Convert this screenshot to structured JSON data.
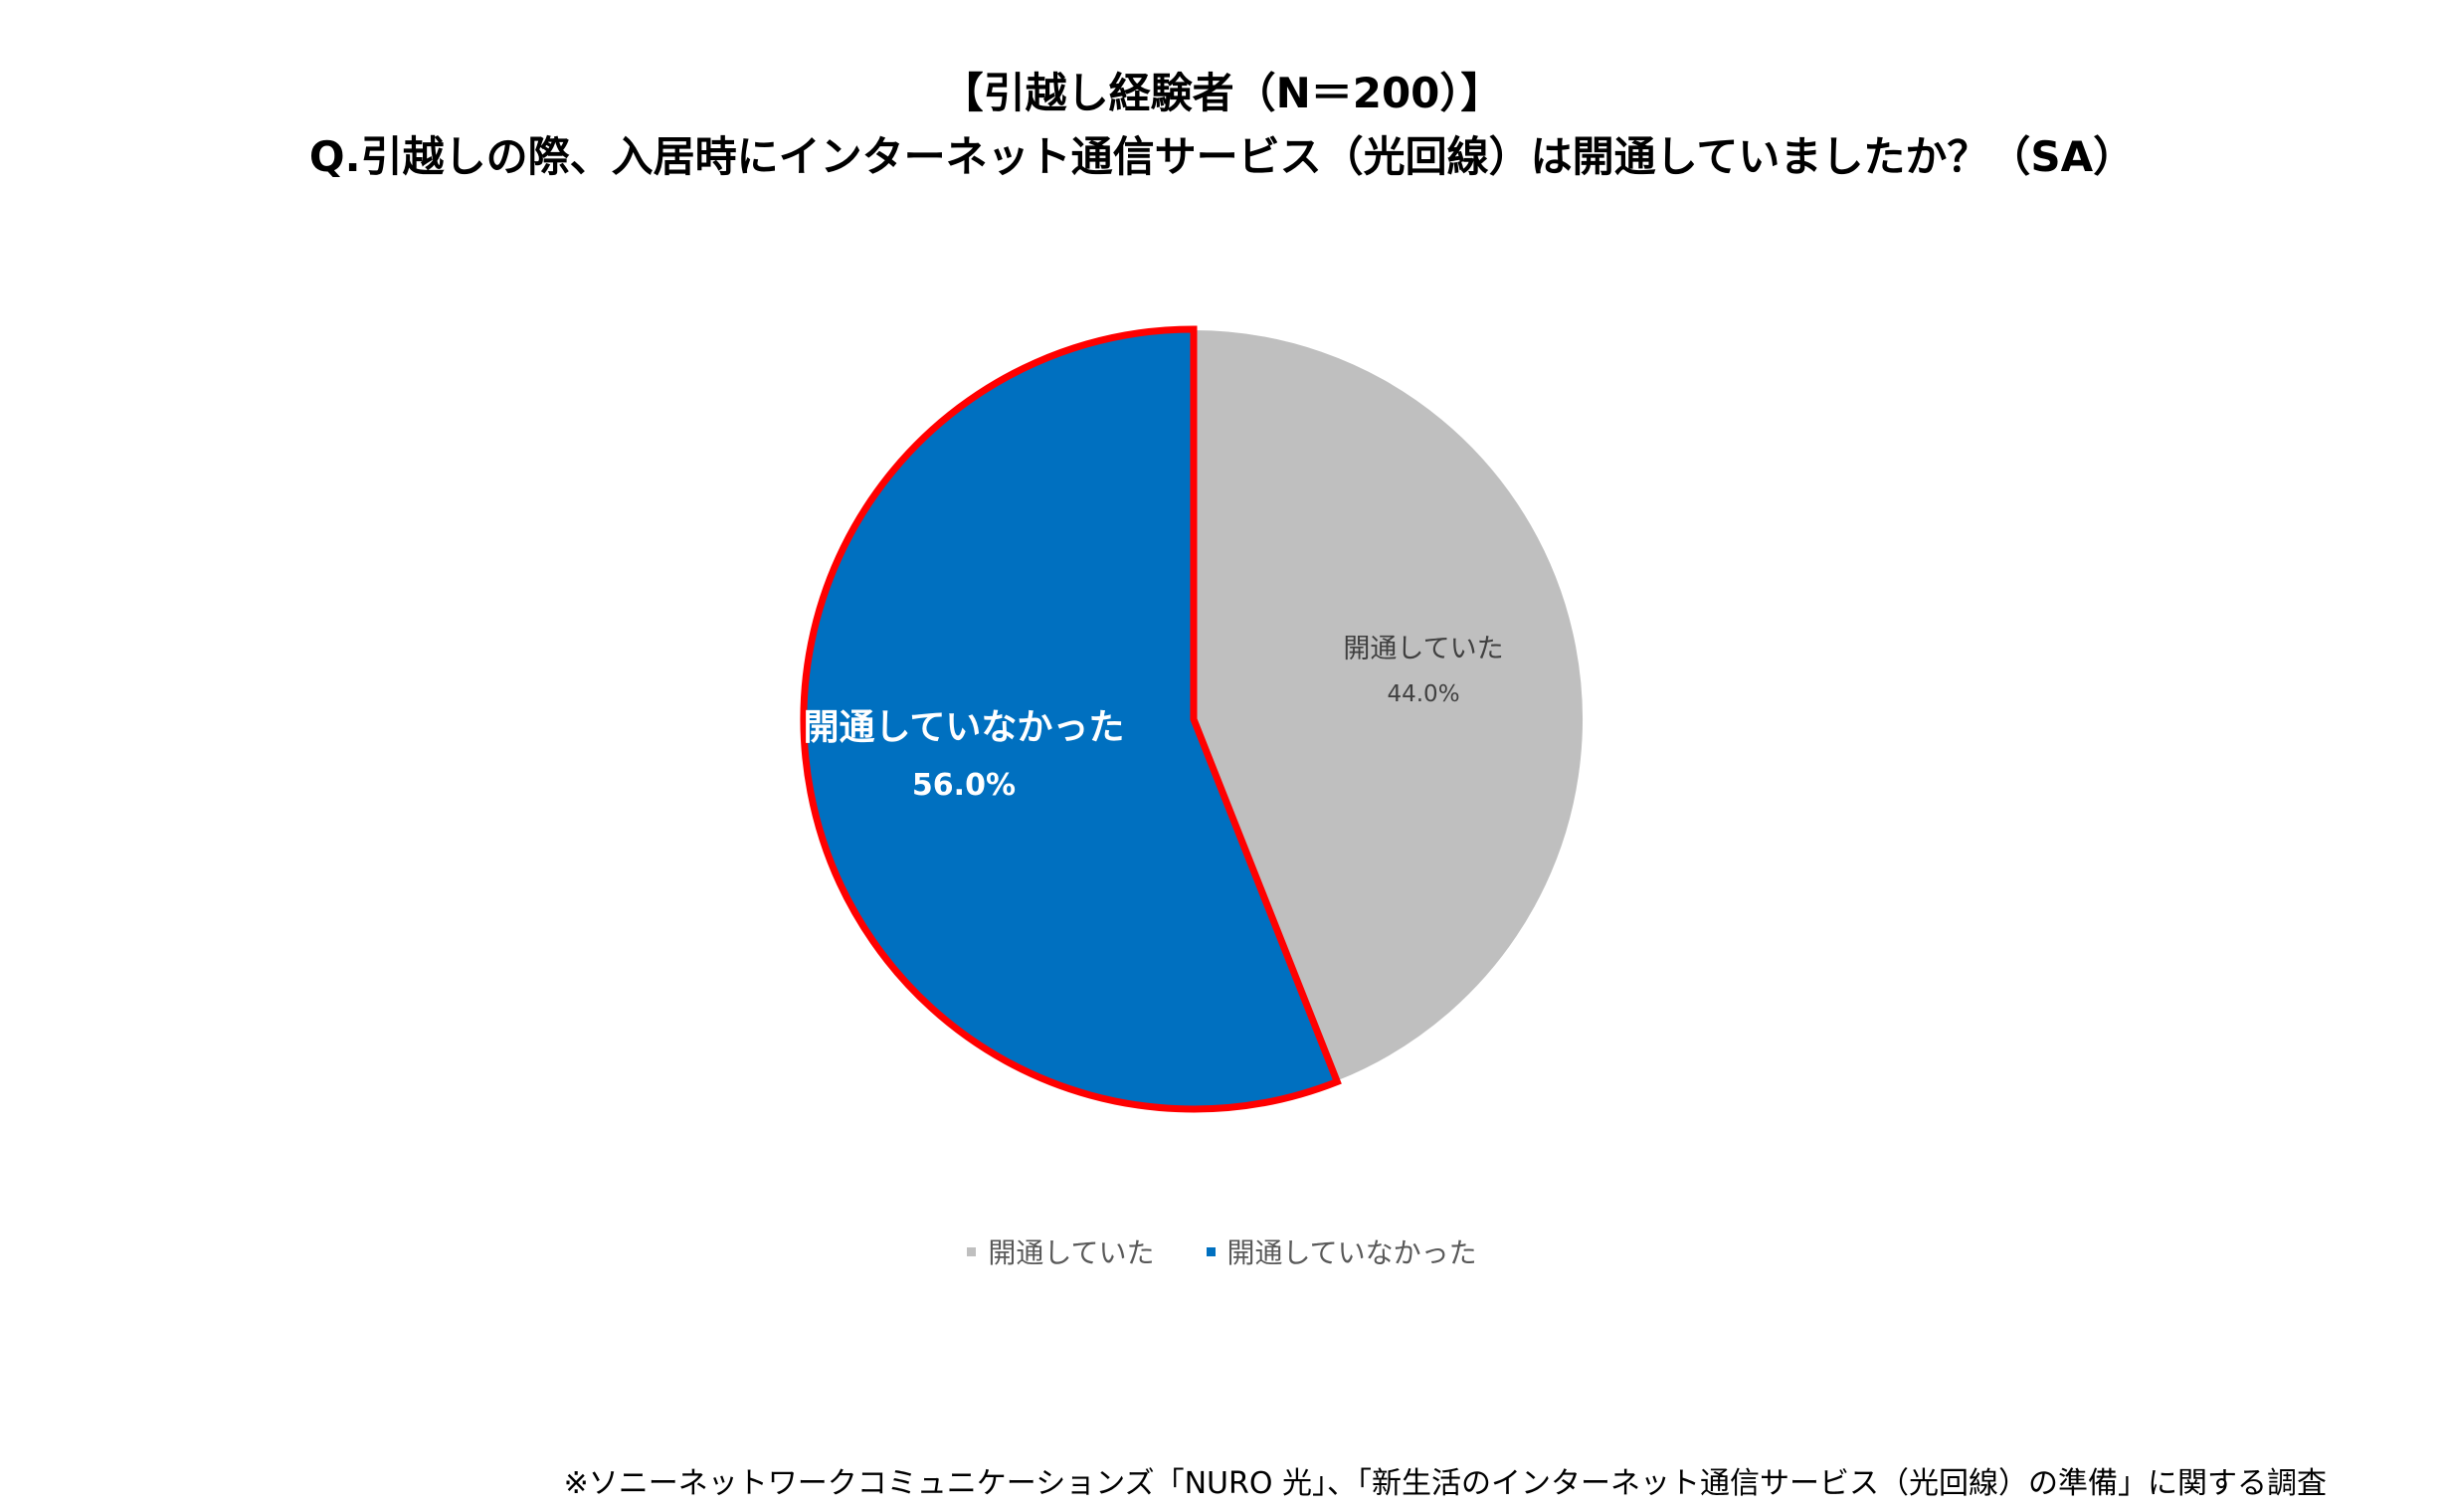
{
  "chart_data": {
    "type": "pie",
    "title_lines": [
      "【引越し経験者（N＝200）】",
      "Q.引越しの際、入居時にインターネット通信サービス（光回線）は開通していましたか？（SA）"
    ],
    "slices": [
      {
        "label": "開通していた",
        "value": 44.0,
        "value_label": "44.0%",
        "color": "#bfbfbf",
        "label_color": "#404040",
        "highlighted": false
      },
      {
        "label": "開通していなかった",
        "value": 56.0,
        "value_label": "56.0%",
        "color": "#0070c0",
        "label_color": "#ffffff",
        "highlighted": true
      }
    ],
    "highlight_color": "#ff0000",
    "start_angle_deg": 0,
    "direction": "clockwise",
    "legend_position": "bottom",
    "legend": [
      "開通していた",
      "開通していなかった"
    ]
  },
  "source_note": "※ソニーネットワークコミュニケーションズ「NURO 光」、「新生活のインターネット通信サービス（光回線）の準備」に関する調査"
}
